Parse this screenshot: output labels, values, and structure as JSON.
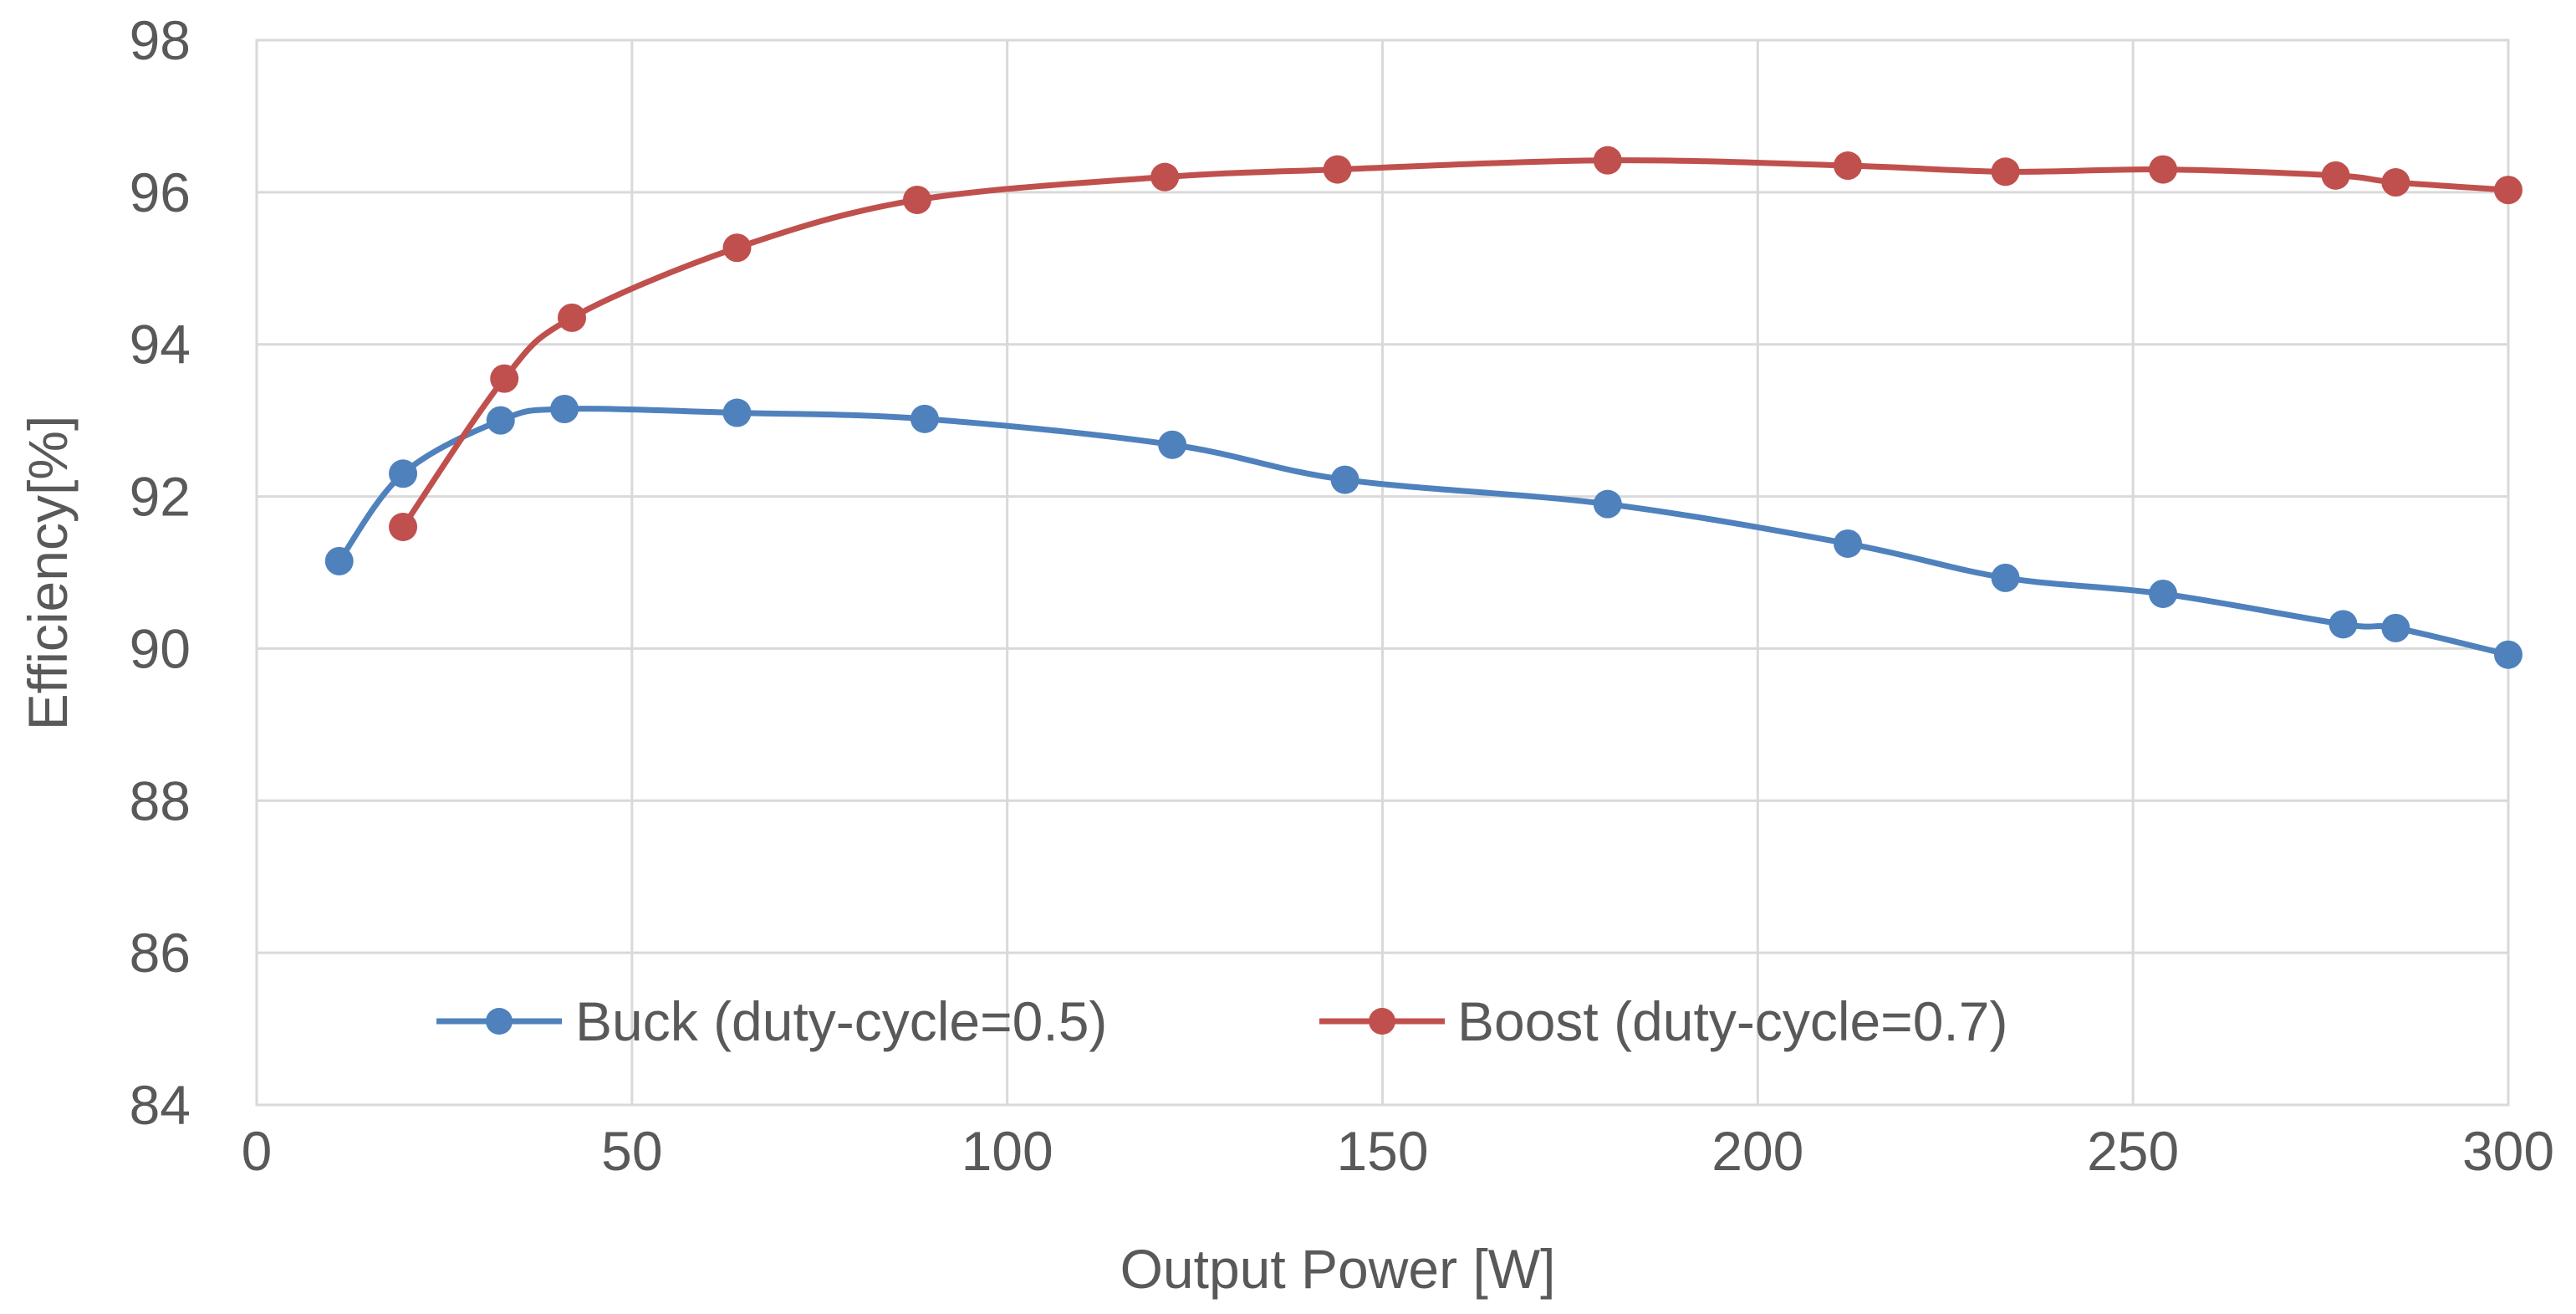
{
  "chart_data": {
    "type": "line",
    "title": "",
    "xlabel": "Output Power [W]",
    "ylabel": "Efficiency[%]",
    "xlim": [
      0,
      300
    ],
    "ylim": [
      84,
      98
    ],
    "xticks": [
      0,
      50,
      100,
      150,
      200,
      250,
      300
    ],
    "yticks": [
      84,
      86,
      88,
      90,
      92,
      94,
      96,
      98
    ],
    "grid": true,
    "legend_position": "bottom-inside",
    "series": [
      {
        "name": "Buck (duty-cycle=0.5)",
        "color": "#4f81bd",
        "marker": "circle",
        "smooth": true,
        "x": [
          11,
          19.5,
          32.5,
          41,
          64,
          89,
          122,
          145,
          180,
          212,
          233,
          254,
          278,
          285,
          300
        ],
        "y": [
          91.15,
          92.3,
          93.0,
          93.15,
          93.1,
          93.02,
          92.68,
          92.22,
          91.9,
          91.38,
          90.93,
          90.72,
          90.32,
          90.27,
          89.92
        ]
      },
      {
        "name": "Boost (duty-cycle=0.7)",
        "color": "#c0504d",
        "marker": "circle",
        "smooth": true,
        "x": [
          19.5,
          33,
          42,
          64,
          88,
          121,
          144,
          180,
          212,
          233,
          254,
          277,
          285,
          300
        ],
        "y": [
          91.6,
          93.55,
          94.35,
          95.27,
          95.9,
          96.2,
          96.3,
          96.42,
          96.35,
          96.27,
          96.3,
          96.22,
          96.13,
          96.03
        ]
      }
    ]
  }
}
